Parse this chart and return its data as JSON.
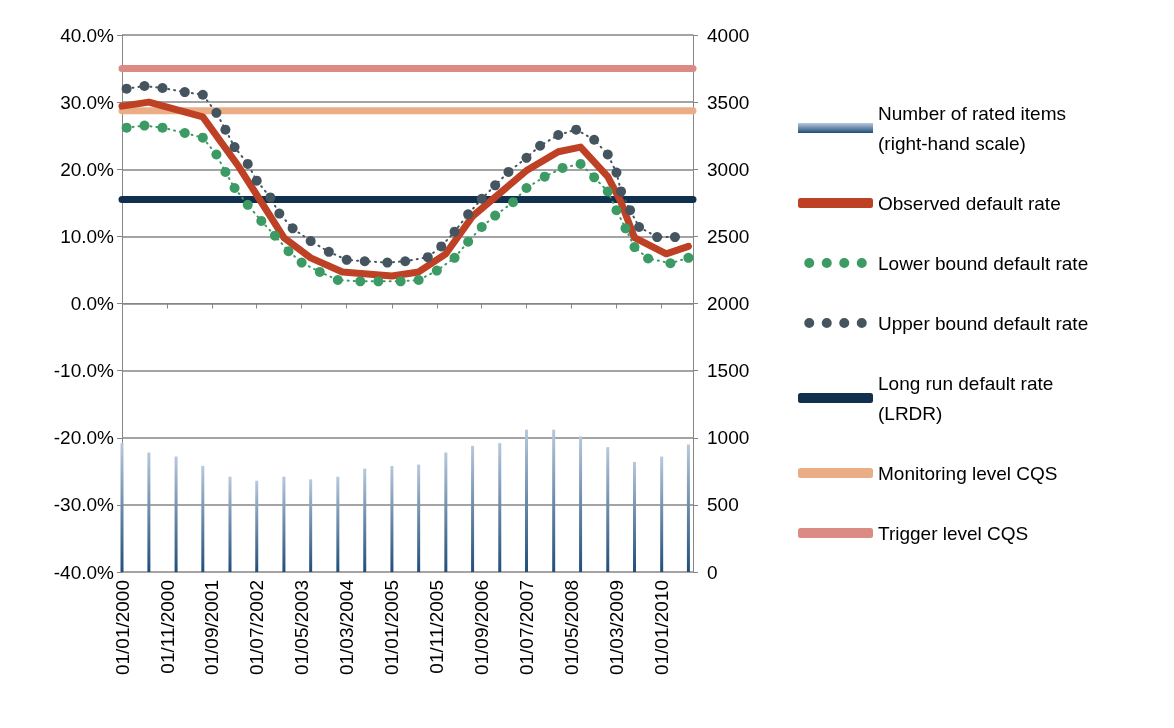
{
  "chart_data": {
    "type": "line",
    "xlim": [
      "2000-01",
      "2010-08"
    ],
    "xticks": [
      {
        "value": "2000-01",
        "label": "01/01/2000"
      },
      {
        "value": "2000-11",
        "label": "01/11/2000"
      },
      {
        "value": "2001-09",
        "label": "01/09/2001"
      },
      {
        "value": "2002-07",
        "label": "01/07/2002"
      },
      {
        "value": "2003-05",
        "label": "01/05/2003"
      },
      {
        "value": "2004-03",
        "label": "01/03/2004"
      },
      {
        "value": "2005-01",
        "label": "01/01/2005"
      },
      {
        "value": "2005-11",
        "label": "01/11/2005"
      },
      {
        "value": "2006-09",
        "label": "01/09/2006"
      },
      {
        "value": "2007-07",
        "label": "01/07/2007"
      },
      {
        "value": "2008-05",
        "label": "01/05/2008"
      },
      {
        "value": "2009-03",
        "label": "01/03/2009"
      },
      {
        "value": "2010-01",
        "label": "01/01/2010"
      }
    ],
    "ylim": [
      -40,
      40
    ],
    "yticks": [
      {
        "value": -40,
        "label": "-40.0%"
      },
      {
        "value": -30,
        "label": "-30.0%"
      },
      {
        "value": -20,
        "label": "-20.0%"
      },
      {
        "value": -10,
        "label": "-10.0%"
      },
      {
        "value": 0,
        "label": "0.0%"
      },
      {
        "value": 10,
        "label": "10.0%"
      },
      {
        "value": 20,
        "label": "20.0%"
      },
      {
        "value": 30,
        "label": "30.0%"
      },
      {
        "value": 40,
        "label": "40.0%"
      }
    ],
    "y2lim": [
      0,
      4000
    ],
    "y2ticks": [
      0,
      500,
      1000,
      1500,
      2000,
      2500,
      3000,
      3500,
      4000
    ],
    "grid": "y",
    "legend": "right",
    "series": [
      {
        "name": "Number of rated items (right-hand scale)",
        "type": "bar",
        "axis": "y2",
        "color": "#1f4e79",
        "x": [
          "2000-01",
          "2000-07",
          "2001-01",
          "2001-07",
          "2002-01",
          "2002-07",
          "2003-01",
          "2003-07",
          "2004-01",
          "2004-07",
          "2005-01",
          "2005-07",
          "2006-01",
          "2006-07",
          "2007-01",
          "2007-07",
          "2008-01",
          "2008-07",
          "2009-01",
          "2009-07",
          "2010-01",
          "2010-07"
        ],
        "values": [
          960,
          890,
          860,
          790,
          710,
          680,
          710,
          690,
          710,
          770,
          790,
          800,
          890,
          940,
          960,
          1060,
          1060,
          1010,
          930,
          820,
          860,
          950
        ]
      },
      {
        "name": "Observed default rate",
        "color": "#be4125",
        "line_style": "solid",
        "x": [
          "2000-01",
          "2000-07",
          "2001-07",
          "2002-03",
          "2003-01",
          "2003-07",
          "2004-02",
          "2005-01",
          "2005-07",
          "2006-01",
          "2006-07",
          "2007-07",
          "2008-02",
          "2008-07",
          "2009-01",
          "2009-04",
          "2009-07",
          "2010-02",
          "2010-07"
        ],
        "values": [
          29.4,
          30.0,
          27.8,
          20.4,
          9.8,
          6.8,
          4.7,
          4.1,
          4.7,
          7.4,
          13.0,
          19.8,
          22.6,
          23.3,
          18.9,
          15.1,
          9.8,
          7.4,
          8.5
        ]
      },
      {
        "name": "Lower bound default rate",
        "marker": "circle",
        "color": "#3c9a64",
        "line_style": "dotted",
        "x": [
          "2000-02",
          "2000-06",
          "2000-10",
          "2001-03",
          "2001-07",
          "2001-10",
          "2001-12",
          "2002-02",
          "2002-05",
          "2002-08",
          "2002-11",
          "2003-02",
          "2003-05",
          "2003-09",
          "2004-01",
          "2004-06",
          "2004-10",
          "2005-03",
          "2005-07",
          "2005-11",
          "2006-03",
          "2006-06",
          "2006-09",
          "2006-12",
          "2007-04",
          "2007-07",
          "2007-11",
          "2008-03",
          "2008-07",
          "2008-10",
          "2009-01",
          "2009-03",
          "2009-05",
          "2009-07",
          "2009-10",
          "2010-03",
          "2010-07"
        ],
        "values": [
          26.2,
          26.5,
          26.2,
          25.4,
          24.7,
          22.2,
          19.6,
          17.2,
          14.7,
          12.3,
          10.1,
          7.8,
          6.1,
          4.7,
          3.5,
          3.3,
          3.3,
          3.3,
          3.5,
          4.9,
          6.8,
          9.2,
          11.4,
          13.1,
          15.1,
          17.2,
          18.9,
          20.2,
          20.8,
          18.8,
          16.7,
          13.9,
          11.2,
          8.4,
          6.7,
          6.0,
          6.8
        ]
      },
      {
        "name": "Upper bound default rate",
        "marker": "circle",
        "color": "#44555f",
        "line_style": "dotted",
        "x": [
          "2000-02",
          "2000-06",
          "2000-10",
          "2001-03",
          "2001-07",
          "2001-10",
          "2001-12",
          "2002-02",
          "2002-05",
          "2002-07",
          "2002-10",
          "2002-12",
          "2003-03",
          "2003-07",
          "2003-11",
          "2004-03",
          "2004-07",
          "2004-12",
          "2005-04",
          "2005-09",
          "2005-12",
          "2006-03",
          "2006-06",
          "2006-09",
          "2006-12",
          "2007-03",
          "2007-07",
          "2007-10",
          "2008-02",
          "2008-06",
          "2008-10",
          "2009-01",
          "2009-03",
          "2009-04",
          "2009-06",
          "2009-08",
          "2009-12",
          "2010-04"
        ],
        "values": [
          32.0,
          32.4,
          32.1,
          31.5,
          31.1,
          28.4,
          25.9,
          23.3,
          20.8,
          18.3,
          15.8,
          13.4,
          11.2,
          9.3,
          7.7,
          6.5,
          6.3,
          6.1,
          6.3,
          6.9,
          8.5,
          10.7,
          13.3,
          15.6,
          17.6,
          19.6,
          21.7,
          23.5,
          25.1,
          25.9,
          24.4,
          22.2,
          19.5,
          16.7,
          13.9,
          11.4,
          9.9,
          9.9
        ]
      }
    ],
    "ref_lines": [
      {
        "axis": "y",
        "value": 15.5,
        "label": "Long run default rate (LRDR)",
        "color": "#10304e",
        "line_style": "solid"
      },
      {
        "axis": "y",
        "value": 28.7,
        "label": "Monitoring level CQS",
        "color": "#ebad85",
        "line_style": "solid"
      },
      {
        "axis": "y",
        "value": 35.0,
        "label": "Trigger level CQS",
        "color": "#dc8a84",
        "line_style": "solid"
      }
    ]
  }
}
